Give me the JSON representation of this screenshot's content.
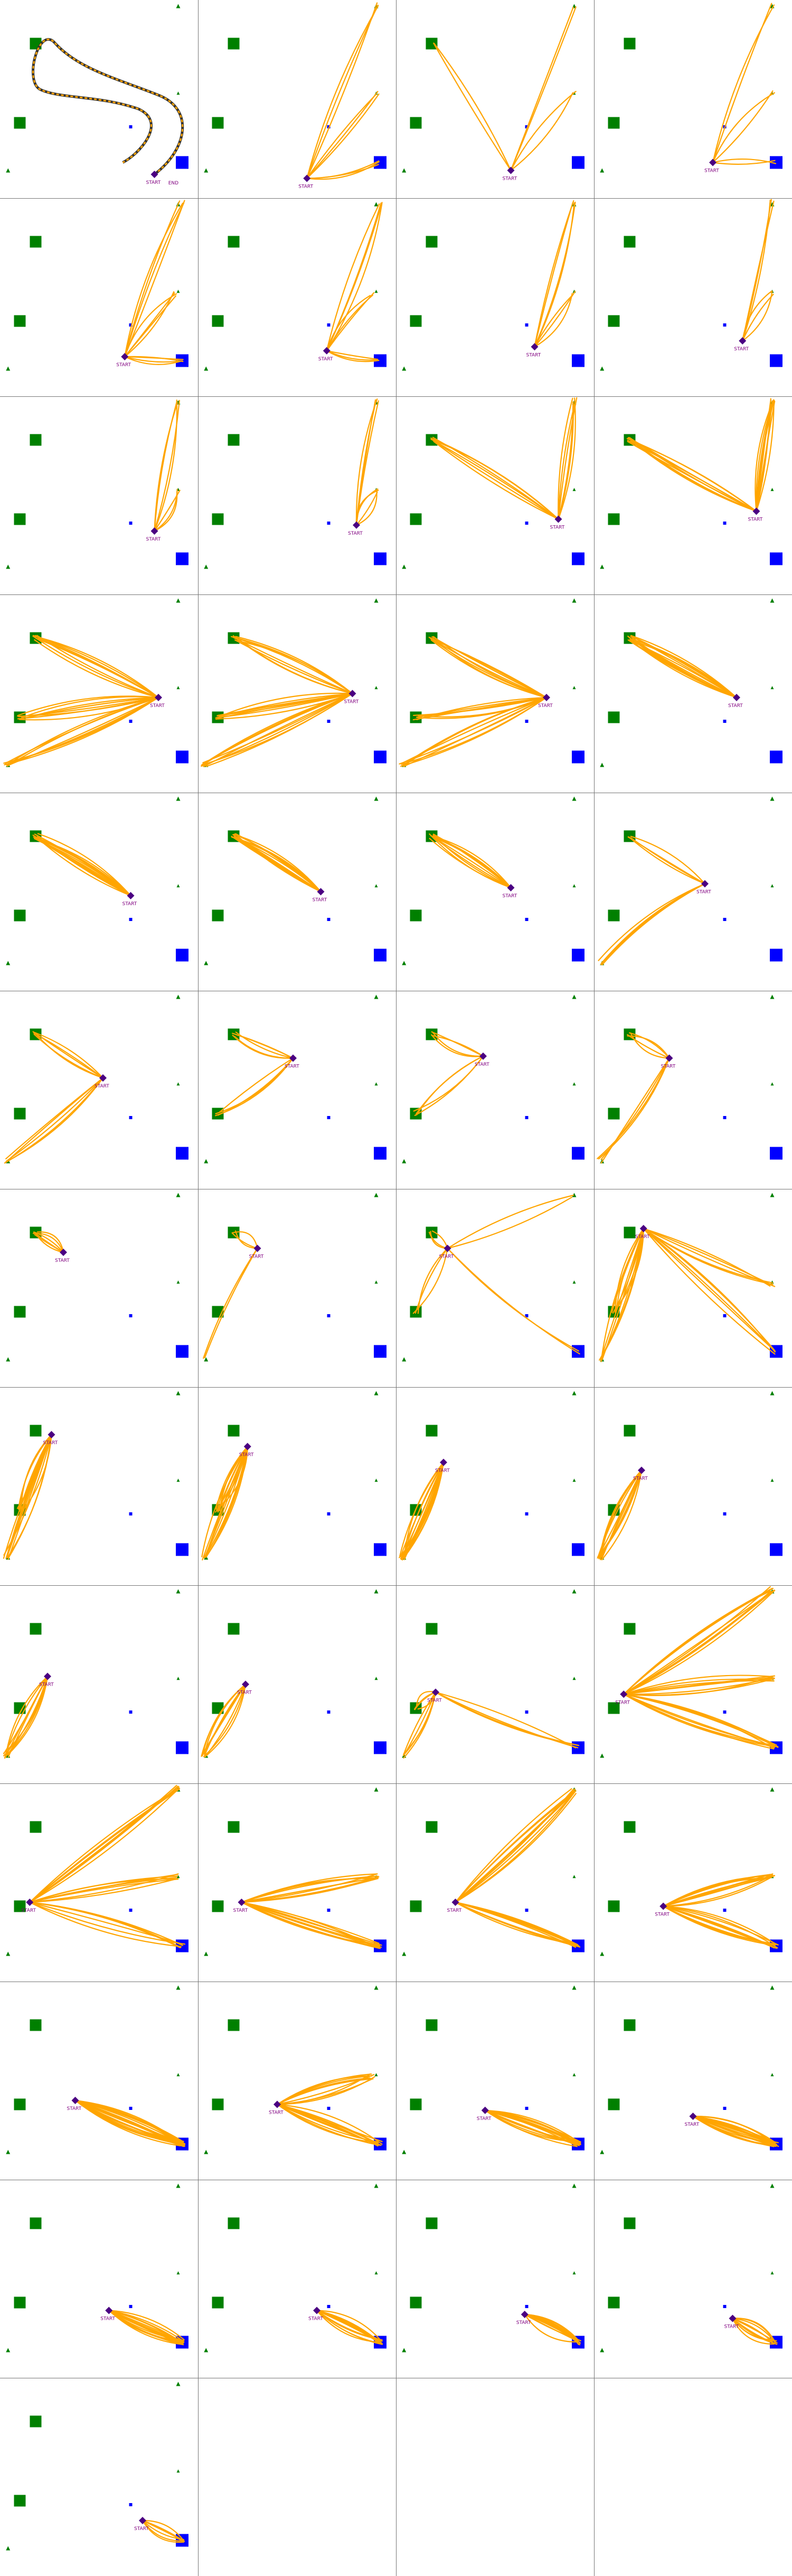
{
  "colors": {
    "path": "#FFA500",
    "path_edge": "#333333",
    "start": "#4B0082",
    "start_label": "#800080",
    "green": "#008000",
    "blue": "#0000FF",
    "divider": "#777777"
  },
  "labels": {
    "start": "START",
    "end": "END"
  },
  "grid": {
    "columns": 4,
    "rows": 13,
    "panel_count": 49
  },
  "icons": [
    "start-diamond-icon",
    "green-square-icon",
    "blue-square-icon",
    "green-triangle-icon",
    "blue-dot-icon"
  ],
  "panels": [
    {
      "start": [
        0.78,
        0.88
      ],
      "targets": [
        [
          0.95,
          0.87
        ]
      ],
      "mode": "dashed",
      "n": 1,
      "end": true
    },
    {
      "start": [
        0.55,
        0.9
      ],
      "targets": [
        [
          0.9,
          0.02
        ],
        [
          0.9,
          0.47
        ],
        [
          0.92,
          0.82
        ]
      ],
      "n": 9
    },
    {
      "start": [
        0.58,
        0.86
      ],
      "targets": [
        [
          0.18,
          0.22
        ],
        [
          0.9,
          0.47
        ],
        [
          0.9,
          0.04
        ]
      ],
      "n": 6
    },
    {
      "start": [
        0.6,
        0.82
      ],
      "targets": [
        [
          0.9,
          0.02
        ],
        [
          0.9,
          0.47
        ],
        [
          0.92,
          0.82
        ]
      ],
      "n": 6
    },
    {
      "start": [
        0.63,
        0.8
      ],
      "targets": [
        [
          0.92,
          0.02
        ],
        [
          0.88,
          0.48
        ],
        [
          0.92,
          0.82
        ]
      ],
      "n": 12
    },
    {
      "start": [
        0.65,
        0.77
      ],
      "targets": [
        [
          0.92,
          0.02
        ],
        [
          0.88,
          0.48
        ],
        [
          0.92,
          0.82
        ]
      ],
      "n": 10
    },
    {
      "start": [
        0.7,
        0.75
      ],
      "targets": [
        [
          0.9,
          0.02
        ],
        [
          0.9,
          0.48
        ]
      ],
      "n": 7
    },
    {
      "start": [
        0.75,
        0.72
      ],
      "targets": [
        [
          0.9,
          0.02
        ],
        [
          0.9,
          0.48
        ]
      ],
      "n": 6
    },
    {
      "start": [
        0.78,
        0.68
      ],
      "targets": [
        [
          0.9,
          0.02
        ],
        [
          0.9,
          0.48
        ]
      ],
      "n": 7
    },
    {
      "start": [
        0.8,
        0.65
      ],
      "targets": [
        [
          0.9,
          0.02
        ],
        [
          0.9,
          0.48
        ]
      ],
      "n": 8
    },
    {
      "start": [
        0.82,
        0.62
      ],
      "targets": [
        [
          0.18,
          0.22
        ],
        [
          0.9,
          0.02
        ]
      ],
      "n": 14
    },
    {
      "start": [
        0.82,
        0.58
      ],
      "targets": [
        [
          0.18,
          0.22
        ],
        [
          0.9,
          0.02
        ]
      ],
      "n": 20
    },
    {
      "start": [
        0.8,
        0.52
      ],
      "targets": [
        [
          0.18,
          0.22
        ],
        [
          0.1,
          0.62
        ],
        [
          0.03,
          0.86
        ]
      ],
      "n": 26
    },
    {
      "start": [
        0.78,
        0.5
      ],
      "targets": [
        [
          0.18,
          0.22
        ],
        [
          0.1,
          0.62
        ],
        [
          0.03,
          0.86
        ]
      ],
      "n": 24
    },
    {
      "start": [
        0.76,
        0.52
      ],
      "targets": [
        [
          0.18,
          0.22
        ],
        [
          0.1,
          0.62
        ],
        [
          0.03,
          0.86
        ]
      ],
      "n": 22
    },
    {
      "start": [
        0.72,
        0.52
      ],
      "targets": [
        [
          0.18,
          0.22
        ]
      ],
      "n": 14
    },
    {
      "start": [
        0.66,
        0.52
      ],
      "targets": [
        [
          0.18,
          0.22
        ]
      ],
      "n": 12
    },
    {
      "start": [
        0.62,
        0.5
      ],
      "targets": [
        [
          0.18,
          0.22
        ]
      ],
      "n": 12
    },
    {
      "start": [
        0.58,
        0.48
      ],
      "targets": [
        [
          0.18,
          0.22
        ]
      ],
      "n": 10
    },
    {
      "start": [
        0.56,
        0.46
      ],
      "targets": [
        [
          0.18,
          0.22
        ],
        [
          0.03,
          0.86
        ]
      ],
      "n": 8
    },
    {
      "start": [
        0.52,
        0.44
      ],
      "targets": [
        [
          0.18,
          0.22
        ],
        [
          0.03,
          0.86
        ]
      ],
      "n": 10
    },
    {
      "start": [
        0.48,
        0.34
      ],
      "targets": [
        [
          0.18,
          0.22
        ],
        [
          0.1,
          0.62
        ]
      ],
      "n": 9
    },
    {
      "start": [
        0.44,
        0.33
      ],
      "targets": [
        [
          0.18,
          0.22
        ],
        [
          0.1,
          0.62
        ]
      ],
      "n": 8
    },
    {
      "start": [
        0.38,
        0.34
      ],
      "targets": [
        [
          0.18,
          0.22
        ],
        [
          0.03,
          0.86
        ]
      ],
      "n": 8
    },
    {
      "start": [
        0.32,
        0.32
      ],
      "targets": [
        [
          0.18,
          0.22
        ]
      ],
      "n": 6
    },
    {
      "start": [
        0.3,
        0.3
      ],
      "targets": [
        [
          0.18,
          0.22
        ],
        [
          0.03,
          0.86
        ]
      ],
      "n": 5
    },
    {
      "start": [
        0.26,
        0.3
      ],
      "targets": [
        [
          0.18,
          0.22
        ],
        [
          0.1,
          0.62
        ],
        [
          0.9,
          0.04
        ],
        [
          0.92,
          0.82
        ]
      ],
      "n": 10
    },
    {
      "start": [
        0.25,
        0.2
      ],
      "targets": [
        [
          0.1,
          0.62
        ],
        [
          0.03,
          0.86
        ],
        [
          0.92,
          0.82
        ],
        [
          0.9,
          0.48
        ]
      ],
      "n": 22
    },
    {
      "start": [
        0.26,
        0.24
      ],
      "targets": [
        [
          0.1,
          0.62
        ],
        [
          0.03,
          0.86
        ]
      ],
      "n": 18
    },
    {
      "start": [
        0.25,
        0.3
      ],
      "targets": [
        [
          0.1,
          0.62
        ],
        [
          0.03,
          0.86
        ]
      ],
      "n": 18
    },
    {
      "start": [
        0.24,
        0.38
      ],
      "targets": [
        [
          0.03,
          0.86
        ]
      ],
      "n": 16
    },
    {
      "start": [
        0.24,
        0.42
      ],
      "targets": [
        [
          0.03,
          0.86
        ]
      ],
      "n": 12
    },
    {
      "start": [
        0.24,
        0.46
      ],
      "targets": [
        [
          0.03,
          0.86
        ]
      ],
      "n": 10
    },
    {
      "start": [
        0.24,
        0.5
      ],
      "targets": [
        [
          0.03,
          0.86
        ]
      ],
      "n": 10
    },
    {
      "start": [
        0.2,
        0.54
      ],
      "targets": [
        [
          0.1,
          0.62
        ],
        [
          0.03,
          0.86
        ],
        [
          0.92,
          0.82
        ]
      ],
      "n": 14
    },
    {
      "start": [
        0.15,
        0.55
      ],
      "targets": [
        [
          0.9,
          0.02
        ],
        [
          0.9,
          0.47
        ],
        [
          0.92,
          0.82
        ]
      ],
      "n": 28
    },
    {
      "start": [
        0.15,
        0.6
      ],
      "targets": [
        [
          0.9,
          0.02
        ],
        [
          0.9,
          0.47
        ],
        [
          0.92,
          0.82
        ]
      ],
      "n": 22
    },
    {
      "start": [
        0.22,
        0.6
      ],
      "targets": [
        [
          0.92,
          0.82
        ],
        [
          0.9,
          0.47
        ]
      ],
      "n": 22
    },
    {
      "start": [
        0.3,
        0.6
      ],
      "targets": [
        [
          0.92,
          0.82
        ],
        [
          0.9,
          0.04
        ]
      ],
      "n": 20
    },
    {
      "start": [
        0.35,
        0.62
      ],
      "targets": [
        [
          0.92,
          0.82
        ],
        [
          0.9,
          0.47
        ]
      ],
      "n": 22
    },
    {
      "start": [
        0.38,
        0.6
      ],
      "targets": [
        [
          0.92,
          0.82
        ]
      ],
      "n": 20
    },
    {
      "start": [
        0.4,
        0.62
      ],
      "targets": [
        [
          0.92,
          0.82
        ],
        [
          0.88,
          0.48
        ]
      ],
      "n": 20
    },
    {
      "start": [
        0.45,
        0.65
      ],
      "targets": [
        [
          0.92,
          0.82
        ]
      ],
      "n": 18
    },
    {
      "start": [
        0.5,
        0.68
      ],
      "targets": [
        [
          0.92,
          0.82
        ]
      ],
      "n": 18
    },
    {
      "start": [
        0.55,
        0.66
      ],
      "targets": [
        [
          0.92,
          0.82
        ]
      ],
      "n": 16
    },
    {
      "start": [
        0.6,
        0.66
      ],
      "targets": [
        [
          0.92,
          0.82
        ]
      ],
      "n": 14
    },
    {
      "start": [
        0.65,
        0.68
      ],
      "targets": [
        [
          0.92,
          0.82
        ]
      ],
      "n": 12
    },
    {
      "start": [
        0.7,
        0.7
      ],
      "targets": [
        [
          0.92,
          0.82
        ]
      ],
      "n": 10
    },
    {
      "start": [
        0.72,
        0.72
      ],
      "targets": [
        [
          0.92,
          0.82
        ]
      ],
      "n": 8
    }
  ]
}
